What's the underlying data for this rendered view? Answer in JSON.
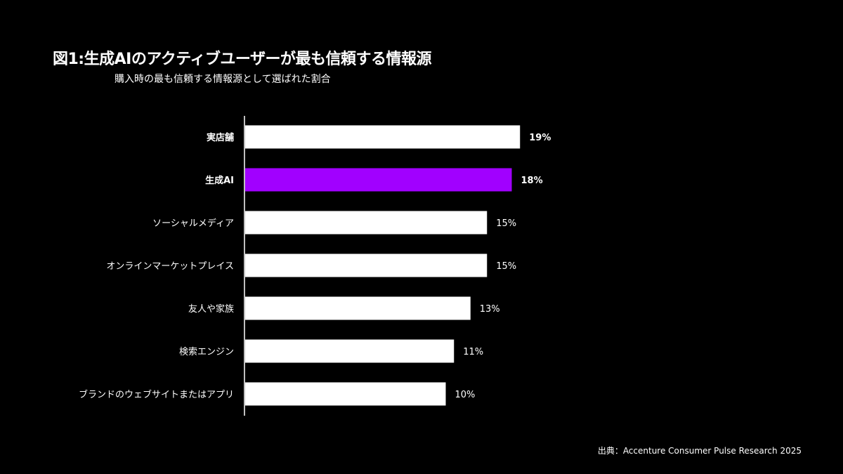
{
  "chart_data": {
    "type": "bar",
    "orientation": "horizontal",
    "title": "図1:生成AIのアクティブユーザーが最も信頼する情報源",
    "subtitle": "購入時の最も信頼する情報源として選ばれた割合",
    "categories": [
      "実店舗",
      "生成AI",
      "ソーシャルメディア",
      "オンラインマーケットプレイス",
      "友人や家族",
      "検索エンジン",
      "ブランドのウェブサイトまたはアプリ"
    ],
    "values": [
      19,
      18,
      15,
      15,
      13,
      11,
      10
    ],
    "value_labels": [
      "19%",
      "18%",
      "15%",
      "15%",
      "13%",
      "11%",
      "10%"
    ],
    "highlight_index": 1,
    "emphasized_indices": [
      0,
      1
    ],
    "colors": {
      "default": "#ffffff",
      "highlight": "#a100ff",
      "background": "#000000"
    },
    "grid": false,
    "legend": "none",
    "source": "出典：Accenture Consumer Pulse Research 2025"
  }
}
